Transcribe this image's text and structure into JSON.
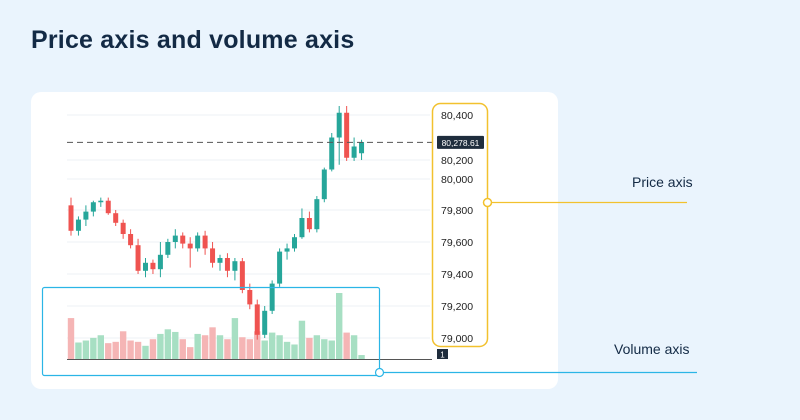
{
  "title": "Price axis and volume axis",
  "labels": {
    "price_axis": "Price axis",
    "volume_axis": "Volume axis"
  },
  "colors": {
    "background": "#eaf4fd",
    "up": "#26a69a",
    "down": "#ef5350",
    "up_volume": "#a7dfc3",
    "down_volume": "#f5b5b5",
    "price_axis_highlight": "#f2c12e",
    "volume_axis_highlight": "#2bb5e6",
    "price_line": "#555555",
    "price_tag": "#1f2d3d"
  },
  "chart_data": {
    "type": "candlestick",
    "price_axis": {
      "ticks": [
        79000,
        79200,
        79400,
        79600,
        79800,
        80000,
        80200,
        80400
      ],
      "tick_labels": [
        "79,000",
        "79,200",
        "79,400",
        "79,600",
        "79,800",
        "80,000",
        "80,200",
        "80,400"
      ],
      "ylim": [
        78980,
        80440
      ]
    },
    "last_price": 80278.61,
    "last_price_label": "80,278.61",
    "volume_axis_label": "1",
    "candles": [
      {
        "o": 79830,
        "h": 79880,
        "l": 79640,
        "c": 79670
      },
      {
        "o": 79670,
        "h": 79760,
        "l": 79640,
        "c": 79740
      },
      {
        "o": 79740,
        "h": 79830,
        "l": 79700,
        "c": 79790
      },
      {
        "o": 79790,
        "h": 79860,
        "l": 79760,
        "c": 79850
      },
      {
        "o": 79850,
        "h": 79880,
        "l": 79820,
        "c": 79860
      },
      {
        "o": 79860,
        "h": 79880,
        "l": 79770,
        "c": 79780
      },
      {
        "o": 79780,
        "h": 79800,
        "l": 79700,
        "c": 79720
      },
      {
        "o": 79720,
        "h": 79740,
        "l": 79620,
        "c": 79650
      },
      {
        "o": 79650,
        "h": 79680,
        "l": 79560,
        "c": 79580
      },
      {
        "o": 79580,
        "h": 79620,
        "l": 79400,
        "c": 79420
      },
      {
        "o": 79420,
        "h": 79500,
        "l": 79380,
        "c": 79470
      },
      {
        "o": 79470,
        "h": 79490,
        "l": 79400,
        "c": 79430
      },
      {
        "o": 79430,
        "h": 79600,
        "l": 79380,
        "c": 79520
      },
      {
        "o": 79520,
        "h": 79620,
        "l": 79500,
        "c": 79600
      },
      {
        "o": 79600,
        "h": 79680,
        "l": 79560,
        "c": 79640
      },
      {
        "o": 79640,
        "h": 79660,
        "l": 79560,
        "c": 79590
      },
      {
        "o": 79590,
        "h": 79630,
        "l": 79440,
        "c": 79560
      },
      {
        "o": 79560,
        "h": 79660,
        "l": 79540,
        "c": 79640
      },
      {
        "o": 79640,
        "h": 79670,
        "l": 79520,
        "c": 79560
      },
      {
        "o": 79560,
        "h": 79600,
        "l": 79440,
        "c": 79470
      },
      {
        "o": 79470,
        "h": 79520,
        "l": 79420,
        "c": 79500
      },
      {
        "o": 79500,
        "h": 79530,
        "l": 79380,
        "c": 79420
      },
      {
        "o": 79420,
        "h": 79500,
        "l": 79360,
        "c": 79480
      },
      {
        "o": 79480,
        "h": 79500,
        "l": 79280,
        "c": 79300
      },
      {
        "o": 79300,
        "h": 79340,
        "l": 79180,
        "c": 79210
      },
      {
        "o": 79210,
        "h": 79240,
        "l": 78990,
        "c": 79020
      },
      {
        "o": 79020,
        "h": 79200,
        "l": 79000,
        "c": 79170
      },
      {
        "o": 79170,
        "h": 79360,
        "l": 79150,
        "c": 79340
      },
      {
        "o": 79340,
        "h": 79560,
        "l": 79320,
        "c": 79540
      },
      {
        "o": 79540,
        "h": 79590,
        "l": 79490,
        "c": 79560
      },
      {
        "o": 79560,
        "h": 79650,
        "l": 79540,
        "c": 79630
      },
      {
        "o": 79630,
        "h": 79810,
        "l": 79620,
        "c": 79750
      },
      {
        "o": 79750,
        "h": 79790,
        "l": 79660,
        "c": 79680
      },
      {
        "o": 79680,
        "h": 79890,
        "l": 79660,
        "c": 79870
      },
      {
        "o": 79870,
        "h": 80120,
        "l": 79850,
        "c": 80100
      },
      {
        "o": 80100,
        "h": 80320,
        "l": 80080,
        "c": 80300
      },
      {
        "o": 80300,
        "h": 80440,
        "l": 80150,
        "c": 80410
      },
      {
        "o": 80410,
        "h": 80440,
        "l": 80190,
        "c": 80210
      },
      {
        "o": 80210,
        "h": 80300,
        "l": 80190,
        "c": 80260
      },
      {
        "o": 80230,
        "h": 80290,
        "l": 80200,
        "c": 80280
      }
    ],
    "volumes": [
      0.62,
      0.25,
      0.28,
      0.32,
      0.36,
      0.24,
      0.26,
      0.42,
      0.28,
      0.26,
      0.2,
      0.3,
      0.38,
      0.45,
      0.41,
      0.3,
      0.18,
      0.38,
      0.36,
      0.48,
      0.36,
      0.3,
      0.62,
      0.33,
      0.3,
      0.42,
      0.28,
      0.4,
      0.36,
      0.26,
      0.22,
      0.58,
      0.32,
      0.36,
      0.3,
      0.28,
      1.0,
      0.4,
      0.36,
      0.06
    ]
  }
}
